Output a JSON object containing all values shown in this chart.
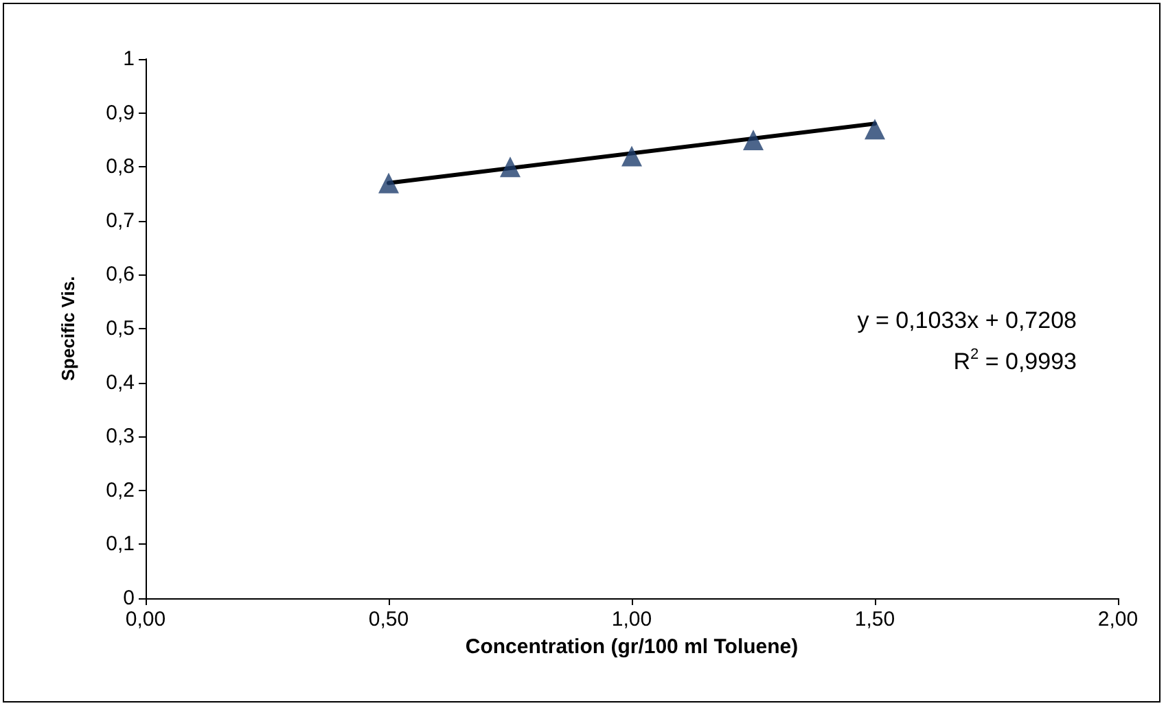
{
  "chart_data": {
    "type": "scatter",
    "xlabel": "Concentration (gr/100 ml Toluene)",
    "ylabel": "Specific Vis.",
    "series": [
      {
        "color": "#1f3f6e",
        "marker": "triangle",
        "x": [
          0.5,
          0.75,
          1.0,
          1.25,
          1.5
        ],
        "values": [
          0.77,
          0.8,
          0.82,
          0.85,
          0.87
        ]
      },
      {
        "type": "line",
        "color": "#000000",
        "marker": "none",
        "line_style": "solid",
        "x": [
          0.5,
          1.5
        ],
        "values": [
          0.77,
          0.88
        ]
      }
    ],
    "xlim": [
      0,
      2
    ],
    "xticks": [
      {
        "value": 0,
        "label": "0,00"
      },
      {
        "value": 0.5,
        "label": "0,50"
      },
      {
        "value": 1,
        "label": "1,00"
      },
      {
        "value": 1.5,
        "label": "1,50"
      },
      {
        "value": 2,
        "label": "2,00"
      }
    ],
    "ylim": [
      0,
      1
    ],
    "yticks": [
      0,
      {
        "value": 0.1,
        "label": "0,1"
      },
      {
        "value": 0.2,
        "label": "0,2"
      },
      {
        "value": 0.3,
        "label": "0,3"
      },
      {
        "value": 0.4,
        "label": "0,4"
      },
      {
        "value": 0.5,
        "label": "0,5"
      },
      {
        "value": 0.6,
        "label": "0,6"
      },
      {
        "value": 0.7,
        "label": "0,7"
      },
      {
        "value": 0.8,
        "label": "0,8"
      },
      {
        "value": 0.9,
        "label": "0,9"
      },
      1
    ],
    "annotations": [
      "y = 0,1033x + 0,7208",
      "R$^{2}$ = 0,9993"
    ],
    "grid": false
  }
}
